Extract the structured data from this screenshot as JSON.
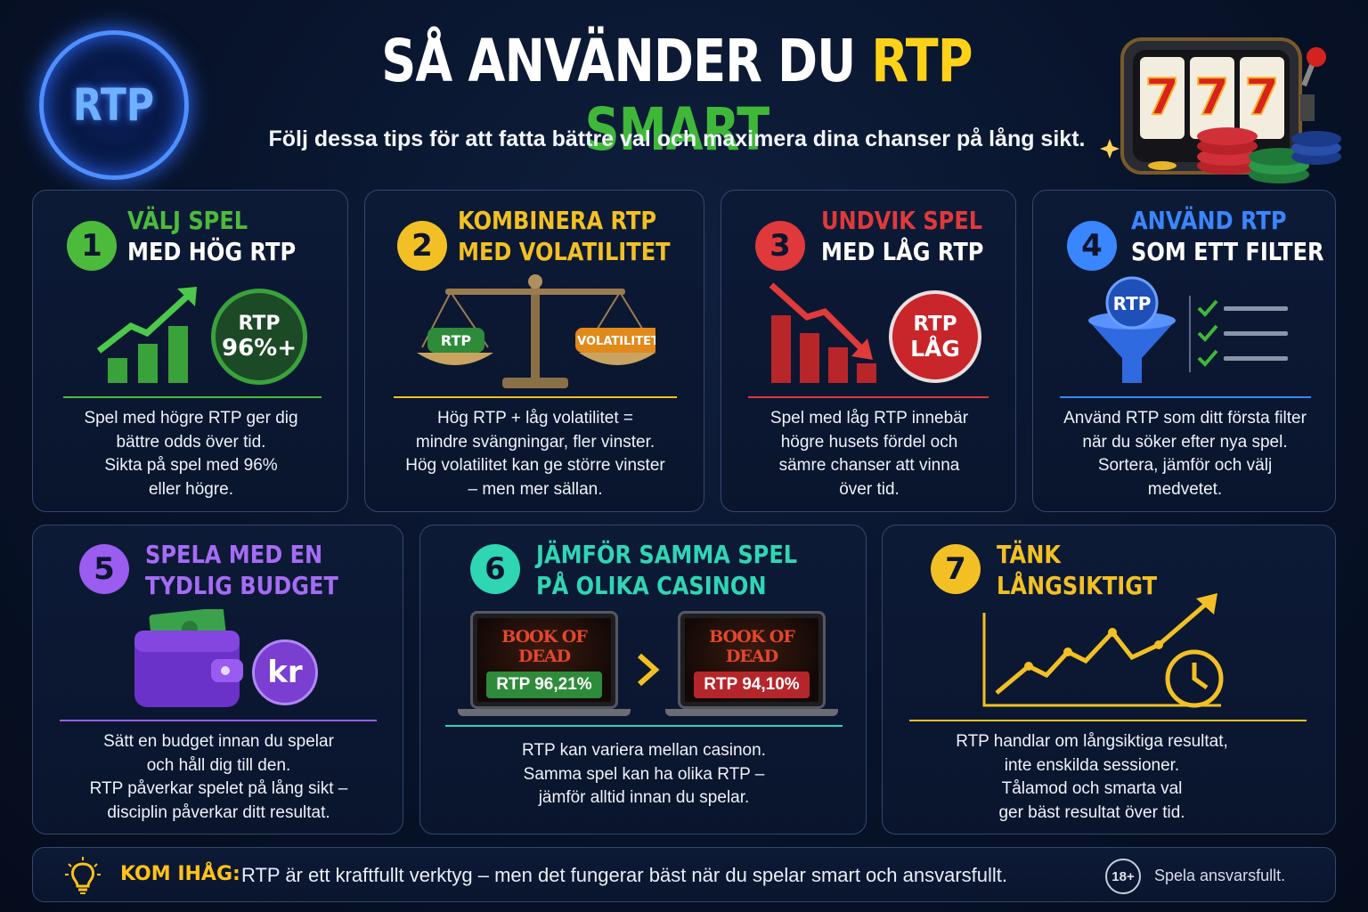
{
  "header": {
    "logo_text": "RTP",
    "title_part1": "SÅ ANVÄNDER DU",
    "title_part2": "RTP",
    "title_part3": "SMART",
    "subtitle": "Följ dessa tips för att fatta bättre val och maximera dina chanser på lång sikt.",
    "slot_symbols": [
      "7",
      "7",
      "7"
    ]
  },
  "cards": [
    {
      "number": "1",
      "title_line1": "VÄLJ SPEL",
      "title_line2": "MED HÖG RTP",
      "accent": "#4cbb3c",
      "badge_line1": "RTP",
      "badge_line2": "96%+",
      "body": [
        "Spel med högre RTP ger dig",
        "bättre odds över tid.",
        "Sikta på spel med 96%",
        "eller högre."
      ]
    },
    {
      "number": "2",
      "title_line1": "KOMBINERA RTP",
      "title_line2": "MED VOLATILITET",
      "accent": "#f2c024",
      "scale_left": "RTP",
      "scale_right": "VOLATILITET",
      "body": [
        "Hög RTP + låg volatilitet =",
        "mindre svängningar, fler vinster.",
        "Hög volatilitet kan ge större vinster",
        "– men mer sällan."
      ]
    },
    {
      "number": "3",
      "title_line1": "UNDVIK SPEL",
      "title_line2": "MED LÅG RTP",
      "accent": "#e0393b",
      "badge_line1": "RTP",
      "badge_line2": "LÅG",
      "body": [
        "Spel med låg RTP innebär",
        "högre husets fördel och",
        "sämre chanser att vinna",
        "över tid."
      ]
    },
    {
      "number": "4",
      "title_line1": "ANVÄND RTP",
      "title_line2": "SOM ETT FILTER",
      "accent": "#3a86ff",
      "funnel_label": "RTP",
      "body": [
        "Använd RTP som ditt första filter",
        "när du söker efter nya spel.",
        "Sortera, jämför och välj",
        "medvetet."
      ]
    },
    {
      "number": "5",
      "title_line1": "SPELA MED EN",
      "title_line2": "TYDLIG BUDGET",
      "accent": "#9b5cf0",
      "coin_label": "kr",
      "body": [
        "Sätt en budget innan du spelar",
        "och håll dig till den.",
        "RTP påverkar spelet på lång sikt –",
        "disciplin påverkar ditt resultat."
      ]
    },
    {
      "number": "6",
      "title_line1": "JÄMFÖR SAMMA SPEL",
      "title_line2": "PÅ OLIKA CASINON",
      "accent": "#2fd6b4",
      "laptops": [
        {
          "game": "BOOK OF DEAD",
          "rtp": "RTP 96,21%",
          "color": "#2e8b3a"
        },
        {
          "game": "BOOK OF DEAD",
          "rtp": "RTP 94,10%",
          "color": "#b5262a"
        }
      ],
      "body": [
        "RTP kan variera mellan casinon.",
        "Samma spel kan ha olika RTP –",
        "jämför alltid innan du spelar."
      ]
    },
    {
      "number": "7",
      "title_line1": "TÄNK",
      "title_line2": "LÅNGSIKTIGT",
      "accent": "#f2c024",
      "body": [
        "RTP handlar om långsiktiga resultat,",
        "inte enskilda sessioner.",
        "Tålamod och smarta val",
        "ger bäst resultat över tid."
      ]
    }
  ],
  "footer": {
    "label": "KOM IHÅG:",
    "message": "RTP är ett kraftfullt verktyg – men det fungerar bäst när du spelar smart och ansvarsfullt.",
    "age": "18+",
    "responsible": "Spela ansvarsfullt."
  }
}
